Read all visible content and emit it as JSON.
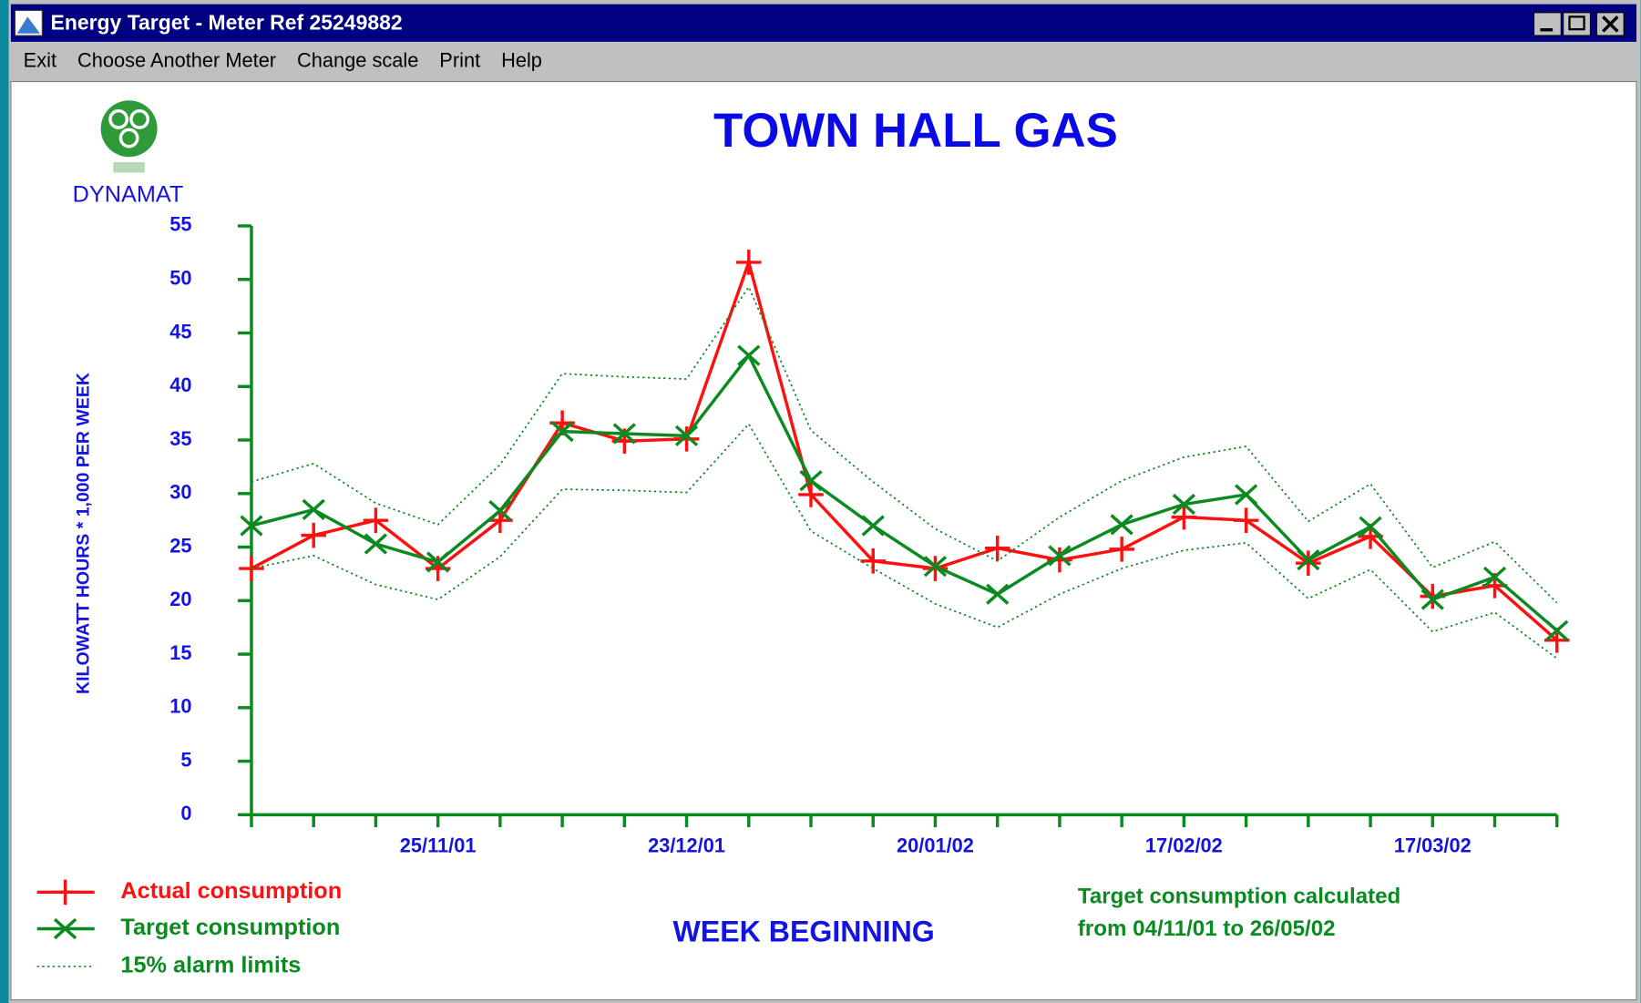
{
  "window": {
    "title": "Energy Target - Meter Ref 25249882",
    "menu": [
      "Exit",
      "Choose Another Meter",
      "Change scale",
      "Print",
      "Help"
    ]
  },
  "logo_text": "DYNAMAT",
  "chart_data": {
    "type": "line",
    "title": "TOWN HALL GAS",
    "ylabel": "KILOWATT HOURS * 1,000 PER WEEK",
    "xlabel": "WEEK BEGINNING",
    "note": [
      "Target consumption calculated",
      "from 04/11/01 to 26/05/02"
    ],
    "categories": [
      null,
      null,
      null,
      "25/11/01",
      null,
      null,
      null,
      "23/12/01",
      null,
      null,
      null,
      "20/01/02",
      null,
      null,
      null,
      "17/02/02",
      null,
      null,
      null,
      "17/03/02",
      null,
      null
    ],
    "series": [
      {
        "name": "Actual consumption",
        "color": "#ff1010",
        "marker": "plus",
        "values": [
          23.0,
          26.1,
          27.5,
          23.0,
          27.5,
          36.6,
          34.9,
          35.1,
          51.6,
          29.9,
          23.7,
          23.0,
          24.9,
          23.8,
          24.8,
          27.8,
          27.5,
          23.5,
          26.0,
          20.4,
          21.4,
          16.3
        ]
      },
      {
        "name": "Target consumption",
        "color": "#0a8a20",
        "marker": "cross",
        "values": [
          27.0,
          28.5,
          25.3,
          23.6,
          28.4,
          35.8,
          35.6,
          35.4,
          42.9,
          31.2,
          27.0,
          23.2,
          20.6,
          24.2,
          27.1,
          29.0,
          29.9,
          23.8,
          26.9,
          20.1,
          22.2,
          17.2
        ]
      },
      {
        "name": "15% alarm limits",
        "color": "#0a8a20",
        "dashed": true,
        "upper": [
          31.1,
          32.8,
          29.1,
          27.1,
          32.7,
          41.2,
          40.9,
          40.7,
          49.3,
          35.9,
          31.1,
          26.7,
          23.7,
          27.8,
          31.2,
          33.4,
          34.4,
          27.4,
          30.9,
          23.1,
          25.5,
          19.8
        ],
        "lower": [
          23.0,
          24.2,
          21.5,
          20.1,
          24.1,
          30.4,
          30.3,
          30.1,
          36.5,
          26.5,
          23.0,
          19.7,
          17.5,
          20.6,
          23.0,
          24.7,
          25.4,
          20.2,
          22.9,
          17.1,
          18.9,
          14.6
        ]
      }
    ],
    "ylim": [
      0,
      55
    ],
    "yticks": [
      0,
      5,
      10,
      15,
      20,
      25,
      30,
      35,
      40,
      45,
      50,
      55
    ],
    "axis_color": "#0a8a20",
    "grid": false
  }
}
